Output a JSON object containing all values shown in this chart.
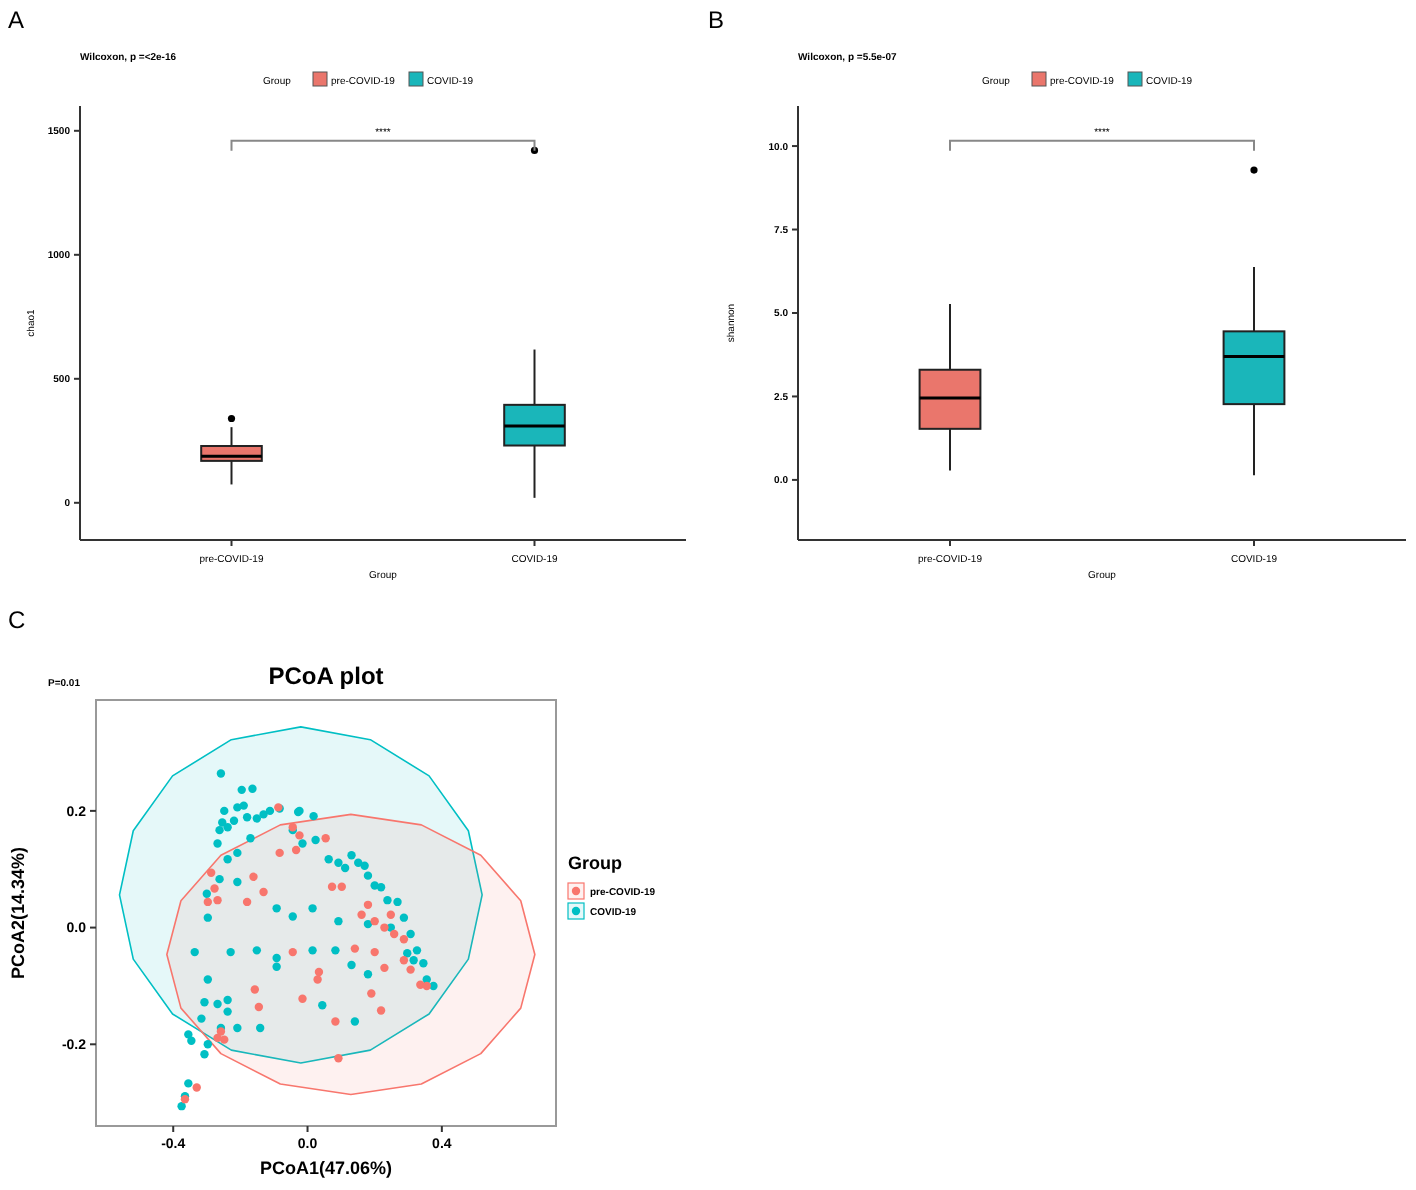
{
  "chart_data": [
    {
      "type": "box",
      "subtitle": "Wilcoxon, p =<2e-16",
      "xlabel": "Group",
      "ylabel": "chao1",
      "legend_title": "Group",
      "legend": "top",
      "annotations": [
        "A",
        "****"
      ],
      "categories": [
        "pre-COVID-19",
        "COVID-19"
      ],
      "series": [
        {
          "name": "pre-COVID-19",
          "color": "#ea766c",
          "boxes": [
            {
              "low": 74,
              "q1": 169,
              "median": 188,
              "q3": 229,
              "high": 305,
              "outliers": [
                340
              ]
            },
            null
          ]
        },
        {
          "name": "COVID-19",
          "color": "#1ab6ba",
          "boxes": [
            null,
            {
              "low": 20,
              "q1": 231,
              "median": 310,
              "q3": 395,
              "high": 618,
              "outliers": [
                1421
              ]
            }
          ]
        }
      ],
      "ylim": [
        -150,
        1600
      ],
      "yticks": [
        0,
        500,
        1000,
        1500
      ],
      "grid": false
    },
    {
      "type": "box",
      "subtitle": "Wilcoxon, p =5.5e-07",
      "xlabel": "Group",
      "ylabel": "shannon",
      "legend_title": "Group",
      "legend": "top",
      "annotations": [
        "B",
        "****"
      ],
      "categories": [
        "pre-COVID-19",
        "COVID-19"
      ],
      "series": [
        {
          "name": "pre-COVID-19",
          "color": "#ea766c",
          "boxes": [
            {
              "low": 0.28,
              "q1": 1.53,
              "median": 2.45,
              "q3": 3.3,
              "high": 5.27
            },
            null
          ]
        },
        {
          "name": "COVID-19",
          "color": "#1ab6ba",
          "boxes": [
            null,
            {
              "low": 0.14,
              "q1": 2.27,
              "median": 3.7,
              "q3": 4.45,
              "high": 6.38,
              "outliers": [
                9.28
              ]
            }
          ]
        }
      ],
      "ylim": [
        -1.8,
        11.2
      ],
      "yticks": [
        {
          "value": 0,
          "label": "0.0"
        },
        {
          "value": 2.5,
          "label": "2.5"
        },
        {
          "value": 5,
          "label": "5.0"
        },
        {
          "value": 7.5,
          "label": "7.5"
        },
        {
          "value": 10,
          "label": "10.0"
        }
      ],
      "grid": false
    },
    {
      "type": "scatter",
      "title": "PCoA plot",
      "xlabel": "PCoA1(47.06%)",
      "ylabel": "PCoA2(14.34%)",
      "legend_title": "Group",
      "legend": "right",
      "annotations": [
        "C",
        "P=0.01"
      ],
      "grid": false,
      "xlim": [
        -0.63,
        0.74
      ],
      "ylim": [
        -0.34,
        0.39
      ],
      "xticks": [
        {
          "value": -0.4,
          "label": "-0.4"
        },
        {
          "value": 0,
          "label": "0.0"
        },
        {
          "value": 0.4,
          "label": "0.4"
        }
      ],
      "yticks": [
        {
          "value": -0.2,
          "label": "-0.2"
        },
        {
          "value": 0,
          "label": "0.0"
        },
        {
          "value": 0.2,
          "label": "0.2"
        }
      ],
      "series": [
        {
          "type": "area",
          "color": "#00bfc4",
          "x": [
            0.52,
            0.479,
            0.362,
            0.187,
            -0.02,
            -0.227,
            -0.402,
            -0.519,
            -0.56,
            -0.519,
            -0.402,
            -0.227,
            -0.02,
            0.187,
            0.362,
            0.479,
            0.52
          ],
          "values": [
            0.056,
            0.166,
            0.26,
            0.322,
            0.344,
            0.322,
            0.26,
            0.166,
            0.056,
            -0.054,
            -0.148,
            -0.21,
            -0.232,
            -0.21,
            -0.148,
            -0.054,
            0.056
          ]
        },
        {
          "type": "area",
          "color": "#f8766d",
          "x": [
            0.677,
            0.635,
            0.516,
            0.339,
            0.129,
            -0.081,
            -0.258,
            -0.377,
            -0.419,
            -0.377,
            -0.258,
            -0.081,
            0.129,
            0.339,
            0.516,
            0.635,
            0.677
          ],
          "values": [
            -0.046,
            0.046,
            0.124,
            0.176,
            0.194,
            0.176,
            0.124,
            0.046,
            -0.046,
            -0.138,
            -0.216,
            -0.268,
            -0.286,
            -0.268,
            -0.216,
            -0.138,
            -0.046
          ]
        },
        {
          "name": "COVID-19",
          "color": "#00bfc4",
          "marker": "circle",
          "x": [
            -0.258,
            -0.196,
            -0.164,
            -0.248,
            -0.209,
            -0.19,
            -0.254,
            -0.238,
            -0.262,
            -0.219,
            -0.18,
            -0.151,
            -0.131,
            -0.112,
            -0.083,
            -0.028,
            0.018,
            -0.024,
            -0.268,
            -0.238,
            -0.209,
            -0.17,
            -0.044,
            -0.015,
            0.024,
            0.063,
            0.092,
            0.112,
            0.131,
            0.151,
            0.18,
            0.17,
            0.2,
            0.219,
            0.238,
            0.268,
            0.287,
            0.307,
            0.326,
            0.345,
            0.375,
            0.355,
            0.316,
            0.297,
            -0.3,
            -0.297,
            -0.262,
            -0.209,
            -0.092,
            -0.044,
            0.015,
            -0.336,
            -0.229,
            -0.151,
            -0.092,
            -0.092,
            0.083,
            0.131,
            0.18,
            -0.297,
            -0.307,
            -0.268,
            -0.238,
            -0.238,
            -0.316,
            -0.258,
            -0.209,
            -0.141,
            0.044,
            0.141,
            -0.355,
            -0.346,
            -0.297,
            -0.307,
            -0.355,
            -0.365,
            -0.375,
            0.092,
            0.18,
            0.248,
            0.015
          ],
          "values": [
            0.264,
            0.236,
            0.238,
            0.2,
            0.206,
            0.209,
            0.18,
            0.172,
            0.167,
            0.183,
            0.189,
            0.187,
            0.194,
            0.2,
            0.204,
            0.198,
            0.191,
            0.2,
            0.144,
            0.117,
            0.128,
            0.153,
            0.167,
            0.144,
            0.15,
            0.117,
            0.111,
            0.102,
            0.124,
            0.111,
            0.089,
            0.106,
            0.072,
            0.069,
            0.047,
            0.044,
            0.017,
            -0.011,
            -0.039,
            -0.061,
            -0.1,
            -0.089,
            -0.056,
            -0.044,
            0.058,
            0.017,
            0.083,
            0.078,
            0.033,
            0.019,
            0.033,
            -0.042,
            -0.042,
            -0.039,
            -0.052,
            -0.067,
            -0.039,
            -0.064,
            -0.08,
            -0.089,
            -0.128,
            -0.131,
            -0.124,
            -0.144,
            -0.156,
            -0.172,
            -0.172,
            -0.172,
            -0.133,
            -0.161,
            -0.183,
            -0.194,
            -0.2,
            -0.217,
            -0.267,
            -0.289,
            -0.306,
            0.011,
            0.006,
            0,
            -0.039
          ]
        },
        {
          "name": "pre-COVID-19",
          "color": "#f8766d",
          "marker": "circle",
          "x": [
            -0.087,
            -0.044,
            -0.024,
            0.054,
            -0.083,
            -0.034,
            -0.287,
            -0.161,
            -0.277,
            -0.297,
            -0.268,
            -0.18,
            -0.131,
            0.073,
            0.102,
            0.161,
            0.18,
            0.2,
            0.229,
            0.248,
            0.258,
            0.287,
            0.2,
            0.141,
            -0.044,
            0.034,
            0.03,
            -0.015,
            -0.157,
            -0.145,
            0.083,
            0.092,
            0.19,
            0.219,
            0.229,
            0.287,
            0.307,
            0.336,
            0.355,
            -0.258,
            -0.268,
            -0.248,
            -0.33,
            -0.365
          ],
          "values": [
            0.206,
            0.172,
            0.158,
            0.153,
            0.128,
            0.133,
            0.094,
            0.087,
            0.067,
            0.044,
            0.047,
            0.044,
            0.061,
            0.07,
            0.07,
            0.022,
            0.039,
            0.011,
            0,
            0.022,
            -0.011,
            -0.02,
            -0.042,
            -0.036,
            -0.042,
            -0.076,
            -0.089,
            -0.122,
            -0.106,
            -0.136,
            -0.161,
            -0.224,
            -0.113,
            -0.142,
            -0.069,
            -0.056,
            -0.072,
            -0.098,
            -0.1,
            -0.178,
            -0.189,
            -0.192,
            -0.274,
            -0.294
          ]
        }
      ]
    }
  ]
}
